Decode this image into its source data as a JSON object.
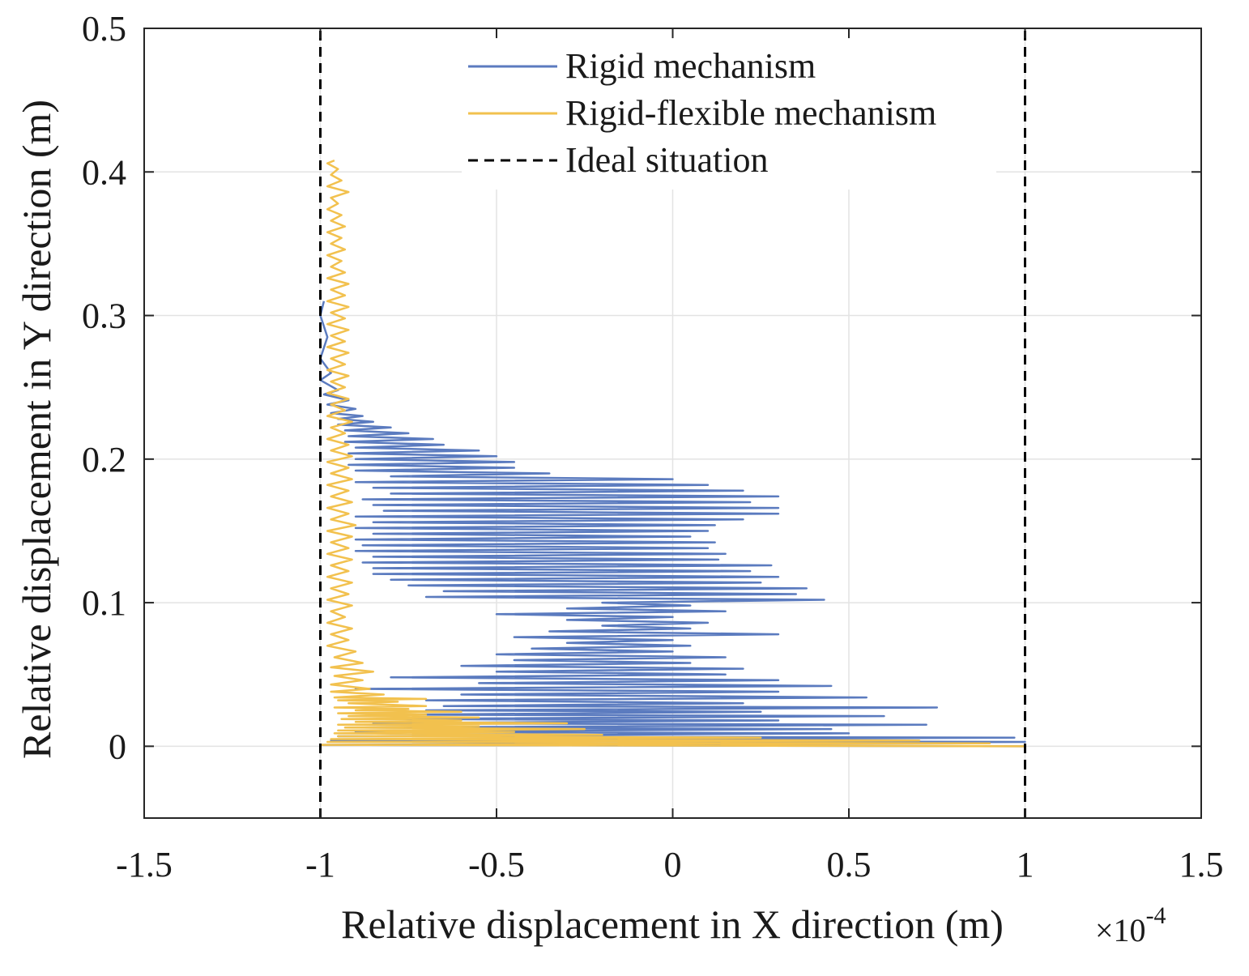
{
  "chart_data": {
    "type": "line",
    "title": "",
    "xlabel": "Relative displacement in X direction (m)",
    "ylabel": "Relative displacement in Y direction (m)",
    "x_multiplier": "×10",
    "x_exponent": "-4",
    "xlim": [
      -1.5,
      1.5
    ],
    "ylim": [
      -0.05,
      0.5
    ],
    "xticks": [
      -1.5,
      -1,
      -0.5,
      0,
      0.5,
      1,
      1.5
    ],
    "xtick_labels": [
      "-1.5",
      "-1",
      "-0.5",
      "0",
      "0.5",
      "1",
      "1.5"
    ],
    "yticks": [
      0,
      0.1,
      0.2,
      0.3,
      0.4,
      0.5
    ],
    "ytick_labels": [
      "0",
      "0.1",
      "0.2",
      "0.3",
      "0.4",
      "0.5"
    ],
    "grid": true,
    "legend_position": "top-center",
    "series": [
      {
        "name": "Rigid mechanism",
        "color": "#5b7bbf",
        "style": "solid",
        "points": [
          [
            1.0,
            0.0
          ],
          [
            -1.0,
            0.001
          ],
          [
            1.0,
            0.003
          ],
          [
            -0.97,
            0.004
          ],
          [
            0.97,
            0.006
          ],
          [
            -0.95,
            0.007
          ],
          [
            0.5,
            0.009
          ],
          [
            -0.9,
            0.01
          ],
          [
            0.45,
            0.012
          ],
          [
            -0.88,
            0.013
          ],
          [
            0.72,
            0.015
          ],
          [
            -0.85,
            0.016
          ],
          [
            0.3,
            0.018
          ],
          [
            -0.8,
            0.019
          ],
          [
            0.6,
            0.021
          ],
          [
            -0.75,
            0.022
          ],
          [
            0.25,
            0.024
          ],
          [
            -0.7,
            0.025
          ],
          [
            0.75,
            0.027
          ],
          [
            -0.65,
            0.028
          ],
          [
            0.2,
            0.03
          ],
          [
            -0.7,
            0.032
          ],
          [
            0.55,
            0.034
          ],
          [
            -0.6,
            0.036
          ],
          [
            0.3,
            0.038
          ],
          [
            -0.9,
            0.04
          ],
          [
            0.45,
            0.042
          ],
          [
            -0.55,
            0.044
          ],
          [
            0.3,
            0.046
          ],
          [
            -0.8,
            0.048
          ],
          [
            0.15,
            0.05
          ],
          [
            -0.5,
            0.052
          ],
          [
            0.2,
            0.054
          ],
          [
            -0.6,
            0.056
          ],
          [
            0.05,
            0.058
          ],
          [
            -0.45,
            0.06
          ],
          [
            0.15,
            0.062
          ],
          [
            -0.5,
            0.064
          ],
          [
            0.0,
            0.066
          ],
          [
            -0.4,
            0.068
          ],
          [
            0.05,
            0.07
          ],
          [
            -0.3,
            0.072
          ],
          [
            0.0,
            0.074
          ],
          [
            -0.45,
            0.076
          ],
          [
            0.3,
            0.078
          ],
          [
            -0.35,
            0.08
          ],
          [
            0.05,
            0.082
          ],
          [
            -0.2,
            0.084
          ],
          [
            0.1,
            0.086
          ],
          [
            -0.3,
            0.088
          ],
          [
            0.0,
            0.09
          ],
          [
            -0.5,
            0.092
          ],
          [
            0.15,
            0.094
          ],
          [
            -0.3,
            0.096
          ],
          [
            0.05,
            0.098
          ],
          [
            -0.2,
            0.1
          ],
          [
            0.43,
            0.102
          ],
          [
            -0.7,
            0.104
          ],
          [
            0.35,
            0.106
          ],
          [
            -0.65,
            0.108
          ],
          [
            0.38,
            0.11
          ],
          [
            -0.75,
            0.112
          ],
          [
            0.25,
            0.114
          ],
          [
            -0.8,
            0.116
          ],
          [
            0.3,
            0.118
          ],
          [
            -0.85,
            0.12
          ],
          [
            0.22,
            0.122
          ],
          [
            -0.85,
            0.124
          ],
          [
            0.28,
            0.126
          ],
          [
            -0.88,
            0.128
          ],
          [
            0.13,
            0.13
          ],
          [
            -0.85,
            0.132
          ],
          [
            0.15,
            0.134
          ],
          [
            -0.9,
            0.136
          ],
          [
            0.1,
            0.138
          ],
          [
            -0.88,
            0.14
          ],
          [
            0.12,
            0.142
          ],
          [
            -0.9,
            0.144
          ],
          [
            0.05,
            0.146
          ],
          [
            -0.85,
            0.148
          ],
          [
            0.1,
            0.15
          ],
          [
            -0.9,
            0.152
          ],
          [
            0.12,
            0.154
          ],
          [
            -0.85,
            0.156
          ],
          [
            0.2,
            0.158
          ],
          [
            -0.9,
            0.16
          ],
          [
            0.3,
            0.162
          ],
          [
            -0.82,
            0.164
          ],
          [
            0.3,
            0.166
          ],
          [
            -0.85,
            0.168
          ],
          [
            0.22,
            0.17
          ],
          [
            -0.88,
            0.172
          ],
          [
            0.3,
            0.174
          ],
          [
            -0.8,
            0.176
          ],
          [
            0.2,
            0.178
          ],
          [
            -0.85,
            0.18
          ],
          [
            0.1,
            0.182
          ],
          [
            -0.9,
            0.184
          ],
          [
            0.0,
            0.186
          ],
          [
            -0.8,
            0.188
          ],
          [
            -0.35,
            0.19
          ],
          [
            -0.9,
            0.192
          ],
          [
            -0.45,
            0.194
          ],
          [
            -0.92,
            0.196
          ],
          [
            -0.45,
            0.198
          ],
          [
            -0.9,
            0.2
          ],
          [
            -0.5,
            0.202
          ],
          [
            -0.92,
            0.204
          ],
          [
            -0.55,
            0.206
          ],
          [
            -0.9,
            0.208
          ],
          [
            -0.65,
            0.21
          ],
          [
            -0.93,
            0.212
          ],
          [
            -0.68,
            0.214
          ],
          [
            -0.92,
            0.216
          ],
          [
            -0.75,
            0.218
          ],
          [
            -0.93,
            0.22
          ],
          [
            -0.8,
            0.222
          ],
          [
            -0.95,
            0.224
          ],
          [
            -0.85,
            0.226
          ],
          [
            -0.95,
            0.228
          ],
          [
            -0.88,
            0.23
          ],
          [
            -0.97,
            0.232
          ],
          [
            -0.9,
            0.235
          ],
          [
            -0.98,
            0.238
          ],
          [
            -0.92,
            0.241
          ],
          [
            -0.99,
            0.245
          ],
          [
            -0.95,
            0.248
          ],
          [
            -1.0,
            0.255
          ],
          [
            -0.97,
            0.26
          ],
          [
            -1.0,
            0.27
          ],
          [
            -0.98,
            0.285
          ],
          [
            -1.0,
            0.3
          ],
          [
            -0.99,
            0.31
          ]
        ]
      },
      {
        "name": "Rigid-flexible mechanism",
        "color": "#f2c14e",
        "style": "solid",
        "points": [
          [
            1.0,
            0.0
          ],
          [
            -1.0,
            0.001
          ],
          [
            0.9,
            0.002
          ],
          [
            -0.98,
            0.003
          ],
          [
            0.7,
            0.004
          ],
          [
            -0.97,
            0.005
          ],
          [
            0.25,
            0.006
          ],
          [
            -0.95,
            0.007
          ],
          [
            -0.2,
            0.008
          ],
          [
            -0.96,
            0.009
          ],
          [
            -0.45,
            0.01
          ],
          [
            -0.95,
            0.011
          ],
          [
            -0.25,
            0.012
          ],
          [
            -0.93,
            0.013
          ],
          [
            -0.55,
            0.014
          ],
          [
            -0.95,
            0.015
          ],
          [
            -0.3,
            0.016
          ],
          [
            -0.9,
            0.017
          ],
          [
            -0.6,
            0.018
          ],
          [
            -0.94,
            0.019
          ],
          [
            -0.55,
            0.02
          ],
          [
            -0.92,
            0.021
          ],
          [
            -0.7,
            0.022
          ],
          [
            -0.95,
            0.023
          ],
          [
            -0.6,
            0.024
          ],
          [
            -0.9,
            0.025
          ],
          [
            -0.75,
            0.026
          ],
          [
            -0.96,
            0.027
          ],
          [
            -0.7,
            0.028
          ],
          [
            -0.92,
            0.03
          ],
          [
            -0.78,
            0.031
          ],
          [
            -0.95,
            0.032
          ],
          [
            -0.7,
            0.033
          ],
          [
            -0.96,
            0.034
          ],
          [
            -0.82,
            0.036
          ],
          [
            -0.97,
            0.038
          ],
          [
            -0.86,
            0.04
          ],
          [
            -0.97,
            0.043
          ],
          [
            -0.88,
            0.046
          ],
          [
            -0.96,
            0.049
          ],
          [
            -0.85,
            0.052
          ],
          [
            -0.97,
            0.055
          ],
          [
            -0.88,
            0.058
          ],
          [
            -0.96,
            0.062
          ],
          [
            -0.9,
            0.066
          ],
          [
            -0.98,
            0.07
          ],
          [
            -0.92,
            0.074
          ],
          [
            -0.97,
            0.078
          ],
          [
            -0.91,
            0.082
          ],
          [
            -0.98,
            0.086
          ],
          [
            -0.93,
            0.09
          ],
          [
            -0.97,
            0.094
          ],
          [
            -0.91,
            0.098
          ],
          [
            -0.98,
            0.102
          ],
          [
            -0.92,
            0.106
          ],
          [
            -0.97,
            0.11
          ],
          [
            -0.91,
            0.114
          ],
          [
            -0.98,
            0.118
          ],
          [
            -0.92,
            0.122
          ],
          [
            -0.97,
            0.126
          ],
          [
            -0.91,
            0.13
          ],
          [
            -0.98,
            0.134
          ],
          [
            -0.92,
            0.138
          ],
          [
            -0.97,
            0.142
          ],
          [
            -0.91,
            0.146
          ],
          [
            -0.98,
            0.15
          ],
          [
            -0.9,
            0.154
          ],
          [
            -0.97,
            0.158
          ],
          [
            -0.92,
            0.162
          ],
          [
            -0.98,
            0.166
          ],
          [
            -0.91,
            0.17
          ],
          [
            -0.97,
            0.174
          ],
          [
            -0.92,
            0.178
          ],
          [
            -0.98,
            0.182
          ],
          [
            -0.91,
            0.186
          ],
          [
            -0.97,
            0.19
          ],
          [
            -0.92,
            0.194
          ],
          [
            -0.98,
            0.198
          ],
          [
            -0.91,
            0.202
          ],
          [
            -0.97,
            0.206
          ],
          [
            -0.92,
            0.21
          ],
          [
            -0.98,
            0.214
          ],
          [
            -0.93,
            0.218
          ],
          [
            -0.97,
            0.222
          ],
          [
            -0.91,
            0.226
          ],
          [
            -0.98,
            0.23
          ],
          [
            -0.93,
            0.234
          ],
          [
            -0.97,
            0.238
          ],
          [
            -0.92,
            0.242
          ],
          [
            -0.98,
            0.246
          ],
          [
            -0.93,
            0.25
          ],
          [
            -0.97,
            0.254
          ],
          [
            -0.92,
            0.258
          ],
          [
            -0.98,
            0.262
          ],
          [
            -0.93,
            0.266
          ],
          [
            -0.97,
            0.27
          ],
          [
            -0.92,
            0.274
          ],
          [
            -0.98,
            0.278
          ],
          [
            -0.93,
            0.282
          ],
          [
            -0.97,
            0.286
          ],
          [
            -0.92,
            0.29
          ],
          [
            -0.98,
            0.294
          ],
          [
            -0.93,
            0.298
          ],
          [
            -0.97,
            0.302
          ],
          [
            -0.92,
            0.306
          ],
          [
            -0.98,
            0.31
          ],
          [
            -0.93,
            0.314
          ],
          [
            -0.97,
            0.318
          ],
          [
            -0.92,
            0.322
          ],
          [
            -0.98,
            0.326
          ],
          [
            -0.93,
            0.33
          ],
          [
            -0.97,
            0.334
          ],
          [
            -0.94,
            0.338
          ],
          [
            -0.98,
            0.342
          ],
          [
            -0.93,
            0.346
          ],
          [
            -0.97,
            0.35
          ],
          [
            -0.94,
            0.354
          ],
          [
            -0.98,
            0.358
          ],
          [
            -0.93,
            0.362
          ],
          [
            -0.97,
            0.366
          ],
          [
            -0.94,
            0.37
          ],
          [
            -0.98,
            0.374
          ],
          [
            -0.95,
            0.378
          ],
          [
            -0.97,
            0.382
          ],
          [
            -0.92,
            0.386
          ],
          [
            -0.98,
            0.39
          ],
          [
            -0.94,
            0.394
          ],
          [
            -0.97,
            0.398
          ],
          [
            -0.95,
            0.402
          ],
          [
            -0.98,
            0.406
          ],
          [
            -0.96,
            0.408
          ]
        ]
      },
      {
        "name": "Ideal situation",
        "color": "#000000",
        "style": "dashed",
        "lines": [
          {
            "x": -1,
            "y_from": -0.05,
            "y_to": 0.5
          },
          {
            "x": 1,
            "y_from": -0.05,
            "y_to": 0.5
          }
        ]
      }
    ]
  }
}
